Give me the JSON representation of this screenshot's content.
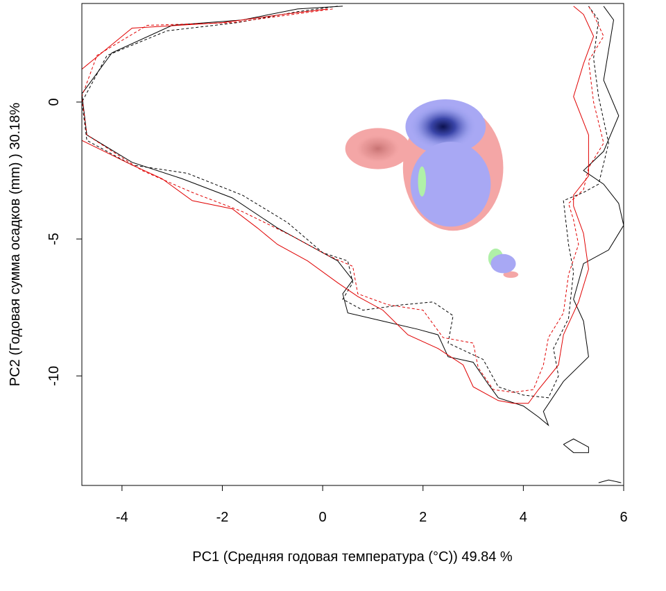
{
  "chart_data": {
    "type": "heatmap",
    "xlabel": "PC1 (Средняя годовая температура (°C)) 49.84 %",
    "ylabel": "PC2 (Годовая сумма осадков  (mm) ) 30.18%",
    "xlim": [
      -4.8,
      6.0
    ],
    "ylim": [
      -14.0,
      3.6
    ],
    "x_ticks": [
      -4,
      -2,
      0,
      2,
      4,
      6
    ],
    "y_ticks": [
      0,
      -5,
      -10
    ],
    "x_tick_labels": [
      "-4",
      "-2",
      "0",
      "2",
      "4",
      "6"
    ],
    "y_tick_labels": [
      "0",
      "-5",
      "-10"
    ],
    "grid": false,
    "legend": "none",
    "colors": {
      "species_a_only": "#f4a6a6",
      "species_a_core": "#c77272",
      "species_b_only": "#a8a8f4",
      "species_b_core": "#0c1250",
      "overlap_green": "#b0f0a8",
      "contour_black": "#000000",
      "contour_red": "#e00000"
    },
    "density_regions": [
      {
        "kind": "red",
        "center": [
          1.1,
          -1.7
        ],
        "radius": [
          0.65,
          0.75
        ],
        "layer": 1
      },
      {
        "kind": "red",
        "center": [
          2.6,
          -2.4
        ],
        "radius": [
          1.0,
          2.3
        ],
        "layer": 0
      },
      {
        "kind": "blue",
        "center": [
          2.45,
          -0.9
        ],
        "radius": [
          0.8,
          1.0
        ],
        "peak": [
          2.4,
          -0.9
        ],
        "layer": 2
      },
      {
        "kind": "blue",
        "center": [
          2.55,
          -3.0
        ],
        "radius": [
          0.8,
          1.55
        ],
        "layer": 2
      },
      {
        "kind": "green",
        "center": [
          1.98,
          -2.9
        ],
        "radius": [
          0.08,
          0.55
        ],
        "layer": 3
      },
      {
        "kind": "green",
        "center": [
          3.45,
          -5.7
        ],
        "radius": [
          0.15,
          0.35
        ],
        "layer": 3
      },
      {
        "kind": "blue",
        "center": [
          3.6,
          -5.9
        ],
        "radius": [
          0.25,
          0.35
        ],
        "layer": 4
      },
      {
        "kind": "red",
        "center": [
          3.75,
          -6.3
        ],
        "radius": [
          0.15,
          0.12
        ],
        "layer": 1
      }
    ],
    "contours": [
      {
        "style": "black-solid",
        "points": [
          [
            0.4,
            3.5
          ],
          [
            -0.5,
            3.4
          ],
          [
            -1.6,
            3.0
          ],
          [
            -3.0,
            2.8
          ],
          [
            -4.2,
            1.8
          ],
          [
            -4.8,
            0.3
          ],
          [
            -4.7,
            -1.2
          ],
          [
            -3.8,
            -2.2
          ],
          [
            -2.8,
            -2.8
          ],
          [
            -1.8,
            -3.5
          ],
          [
            -0.9,
            -4.6
          ],
          [
            -0.4,
            -5.1
          ],
          [
            0.3,
            -5.8
          ],
          [
            0.6,
            -6.5
          ],
          [
            0.4,
            -7.0
          ],
          [
            0.5,
            -7.7
          ],
          [
            1.2,
            -8.0
          ],
          [
            1.9,
            -8.3
          ],
          [
            2.3,
            -8.5
          ],
          [
            2.5,
            -9.3
          ],
          [
            3.0,
            -9.5
          ],
          [
            3.3,
            -10.3
          ],
          [
            3.5,
            -10.8
          ],
          [
            4.0,
            -11.1
          ],
          [
            4.3,
            -11.5
          ],
          [
            4.5,
            -11.8
          ],
          [
            4.4,
            -11.3
          ],
          [
            4.8,
            -10.2
          ],
          [
            5.3,
            -9.3
          ],
          [
            5.2,
            -8.0
          ],
          [
            5.0,
            -7.2
          ],
          [
            5.2,
            -5.9
          ],
          [
            5.7,
            -5.4
          ],
          [
            6.0,
            -4.5
          ],
          [
            5.9,
            -3.7
          ],
          [
            5.6,
            -3.0
          ],
          [
            5.2,
            -2.5
          ],
          [
            5.6,
            -1.8
          ],
          [
            5.9,
            -0.5
          ],
          [
            5.6,
            0.8
          ],
          [
            5.7,
            1.9
          ],
          [
            5.8,
            3.0
          ],
          [
            5.6,
            3.5
          ]
        ]
      },
      {
        "style": "black-dashed",
        "points": [
          [
            0.3,
            3.5
          ],
          [
            -0.5,
            3.3
          ],
          [
            -1.7,
            2.9
          ],
          [
            -3.1,
            2.6
          ],
          [
            -4.3,
            1.7
          ],
          [
            -4.8,
            0.0
          ],
          [
            -4.7,
            -1.4
          ],
          [
            -3.8,
            -2.3
          ],
          [
            -2.7,
            -2.6
          ],
          [
            -1.6,
            -3.4
          ],
          [
            -0.7,
            -4.4
          ],
          [
            0.0,
            -5.5
          ],
          [
            0.5,
            -5.8
          ],
          [
            0.6,
            -6.6
          ],
          [
            0.4,
            -7.2
          ],
          [
            0.8,
            -7.6
          ],
          [
            1.6,
            -7.4
          ],
          [
            2.2,
            -7.3
          ],
          [
            2.6,
            -7.8
          ],
          [
            2.5,
            -8.8
          ],
          [
            3.2,
            -9.4
          ],
          [
            3.5,
            -10.4
          ],
          [
            4.0,
            -10.7
          ],
          [
            4.5,
            -10.8
          ],
          [
            4.7,
            -10.0
          ],
          [
            4.6,
            -9.0
          ],
          [
            4.9,
            -7.9
          ],
          [
            5.0,
            -6.2
          ],
          [
            4.9,
            -5.2
          ],
          [
            4.8,
            -3.6
          ],
          [
            5.2,
            -3.3
          ],
          [
            5.5,
            -3.0
          ],
          [
            5.7,
            -1.5
          ],
          [
            5.5,
            0.2
          ],
          [
            5.4,
            1.6
          ],
          [
            5.5,
            3.0
          ],
          [
            5.3,
            3.5
          ]
        ]
      },
      {
        "style": "red-solid",
        "points": [
          [
            0.1,
            3.4
          ],
          [
            -0.8,
            3.2
          ],
          [
            -2.0,
            2.9
          ],
          [
            -3.8,
            2.7
          ],
          [
            -4.8,
            1.2
          ],
          [
            -4.8,
            -1.4
          ],
          [
            -3.8,
            -2.3
          ],
          [
            -3.2,
            -2.8
          ],
          [
            -2.6,
            -3.6
          ],
          [
            -1.8,
            -3.9
          ],
          [
            -1.3,
            -4.6
          ],
          [
            -0.9,
            -5.2
          ],
          [
            -0.3,
            -5.8
          ],
          [
            0.3,
            -6.6
          ],
          [
            0.7,
            -7.1
          ],
          [
            1.2,
            -7.6
          ],
          [
            1.7,
            -8.5
          ],
          [
            2.3,
            -9.0
          ],
          [
            2.8,
            -9.6
          ],
          [
            3.0,
            -10.4
          ],
          [
            3.5,
            -10.9
          ],
          [
            3.8,
            -11.0
          ],
          [
            4.1,
            -11.0
          ],
          [
            4.3,
            -10.5
          ],
          [
            4.7,
            -9.6
          ],
          [
            4.8,
            -8.5
          ],
          [
            5.1,
            -7.3
          ],
          [
            5.3,
            -6.1
          ],
          [
            5.2,
            -4.8
          ],
          [
            5.0,
            -3.8
          ],
          [
            5.0,
            -3.4
          ],
          [
            5.3,
            -2.7
          ],
          [
            5.3,
            -1.2
          ],
          [
            5.0,
            0.2
          ],
          [
            5.2,
            1.4
          ],
          [
            5.4,
            2.4
          ],
          [
            5.2,
            3.2
          ],
          [
            5.0,
            3.5
          ]
        ]
      },
      {
        "style": "red-dashed",
        "points": [
          [
            0.2,
            3.4
          ],
          [
            -0.6,
            3.2
          ],
          [
            -1.8,
            2.9
          ],
          [
            -3.5,
            2.8
          ],
          [
            -4.5,
            1.7
          ],
          [
            -4.8,
            0.2
          ],
          [
            -4.7,
            -1.2
          ],
          [
            -3.6,
            -2.5
          ],
          [
            -2.6,
            -3.3
          ],
          [
            -1.6,
            -4.0
          ],
          [
            -0.6,
            -4.9
          ],
          [
            0.1,
            -5.6
          ],
          [
            0.6,
            -6.0
          ],
          [
            0.7,
            -7.0
          ],
          [
            1.3,
            -7.4
          ],
          [
            2.0,
            -7.6
          ],
          [
            2.4,
            -8.6
          ],
          [
            3.0,
            -8.8
          ],
          [
            3.1,
            -9.7
          ],
          [
            3.4,
            -10.5
          ],
          [
            3.8,
            -10.6
          ],
          [
            4.2,
            -10.5
          ],
          [
            4.4,
            -9.6
          ],
          [
            4.5,
            -8.6
          ],
          [
            4.8,
            -7.7
          ],
          [
            4.9,
            -6.3
          ],
          [
            5.1,
            -5.2
          ],
          [
            5.0,
            -4.3
          ],
          [
            4.9,
            -3.7
          ],
          [
            5.2,
            -3.2
          ],
          [
            5.3,
            -2.4
          ],
          [
            5.6,
            -1.5
          ],
          [
            5.4,
            0.0
          ],
          [
            5.3,
            1.5
          ],
          [
            5.6,
            2.4
          ],
          [
            5.4,
            3.2
          ],
          [
            5.3,
            3.5
          ]
        ]
      },
      {
        "style": "black-solid",
        "points": [
          [
            4.8,
            -12.5
          ],
          [
            5.0,
            -12.3
          ],
          [
            5.3,
            -12.6
          ],
          [
            5.3,
            -12.8
          ],
          [
            5.0,
            -12.8
          ],
          [
            4.8,
            -12.5
          ]
        ]
      },
      {
        "style": "black-solid",
        "points": [
          [
            5.5,
            -13.9
          ],
          [
            5.7,
            -13.8
          ],
          [
            5.95,
            -13.9
          ]
        ]
      }
    ]
  }
}
